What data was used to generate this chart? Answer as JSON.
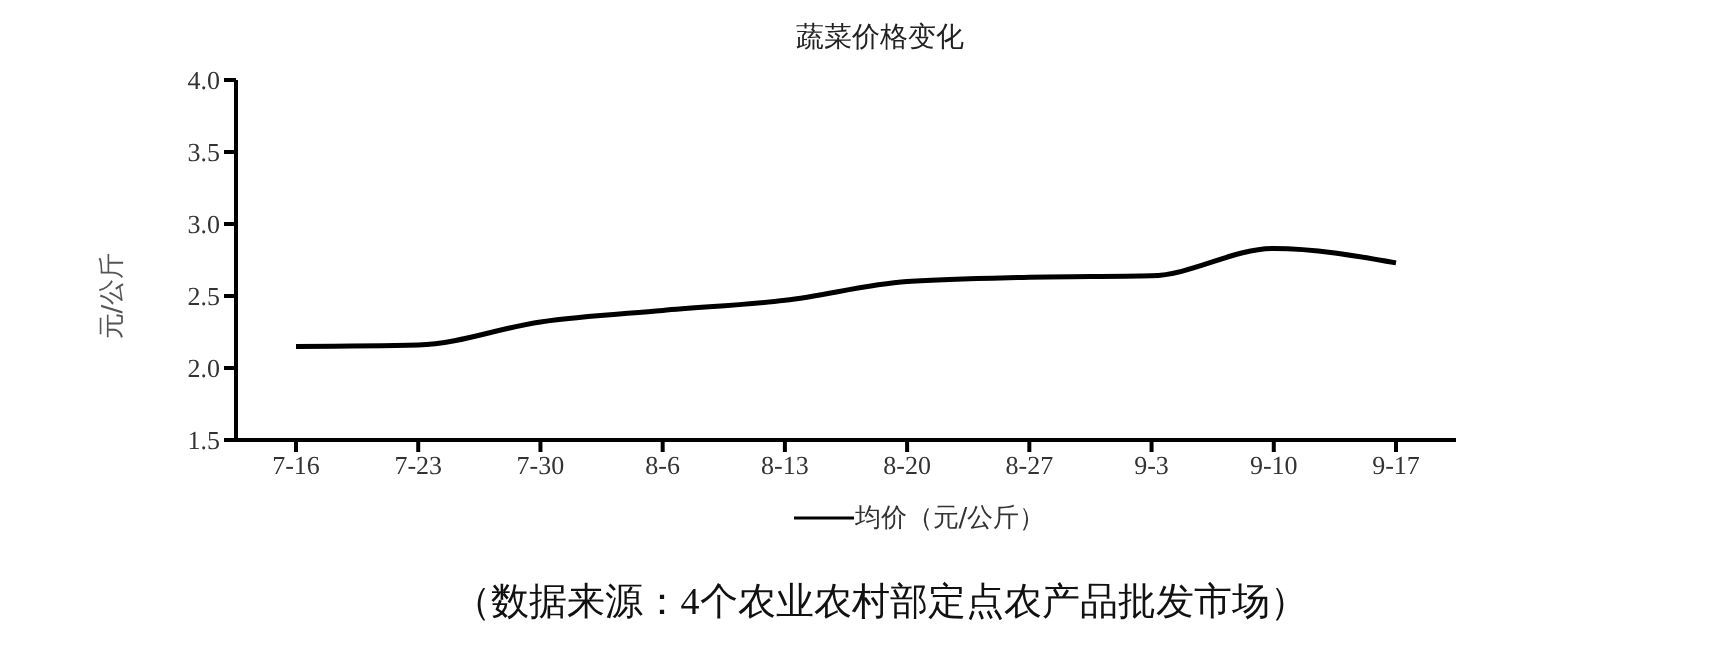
{
  "chart_data": {
    "type": "line",
    "title": "蔬菜价格变化",
    "ylabel": "元/公斤",
    "categories": [
      "7-16",
      "7-23",
      "7-30",
      "8-6",
      "8-13",
      "8-20",
      "8-27",
      "9-3",
      "9-10",
      "9-17"
    ],
    "series": [
      {
        "name": "均价（元/公斤）",
        "color": "#000000",
        "values": [
          2.15,
          2.16,
          2.32,
          2.4,
          2.47,
          2.6,
          2.63,
          2.64,
          2.83,
          2.73
        ]
      }
    ],
    "ylim": [
      1.5,
      4.0
    ],
    "yticks": [
      {
        "value": 1.5,
        "label": "1.5"
      },
      {
        "value": 2.0,
        "label": "2.0"
      },
      {
        "value": 2.5,
        "label": "2.5"
      },
      {
        "value": 3.0,
        "label": "3.0"
      },
      {
        "value": 3.5,
        "label": "3.5"
      },
      {
        "value": 4.0,
        "label": "4.0"
      }
    ],
    "grid": false,
    "legend": "bottom",
    "marker": "none",
    "line_style": "solid",
    "annotations": [
      "（数据来源：4个农业农村部定点农产品批发市场）"
    ]
  }
}
